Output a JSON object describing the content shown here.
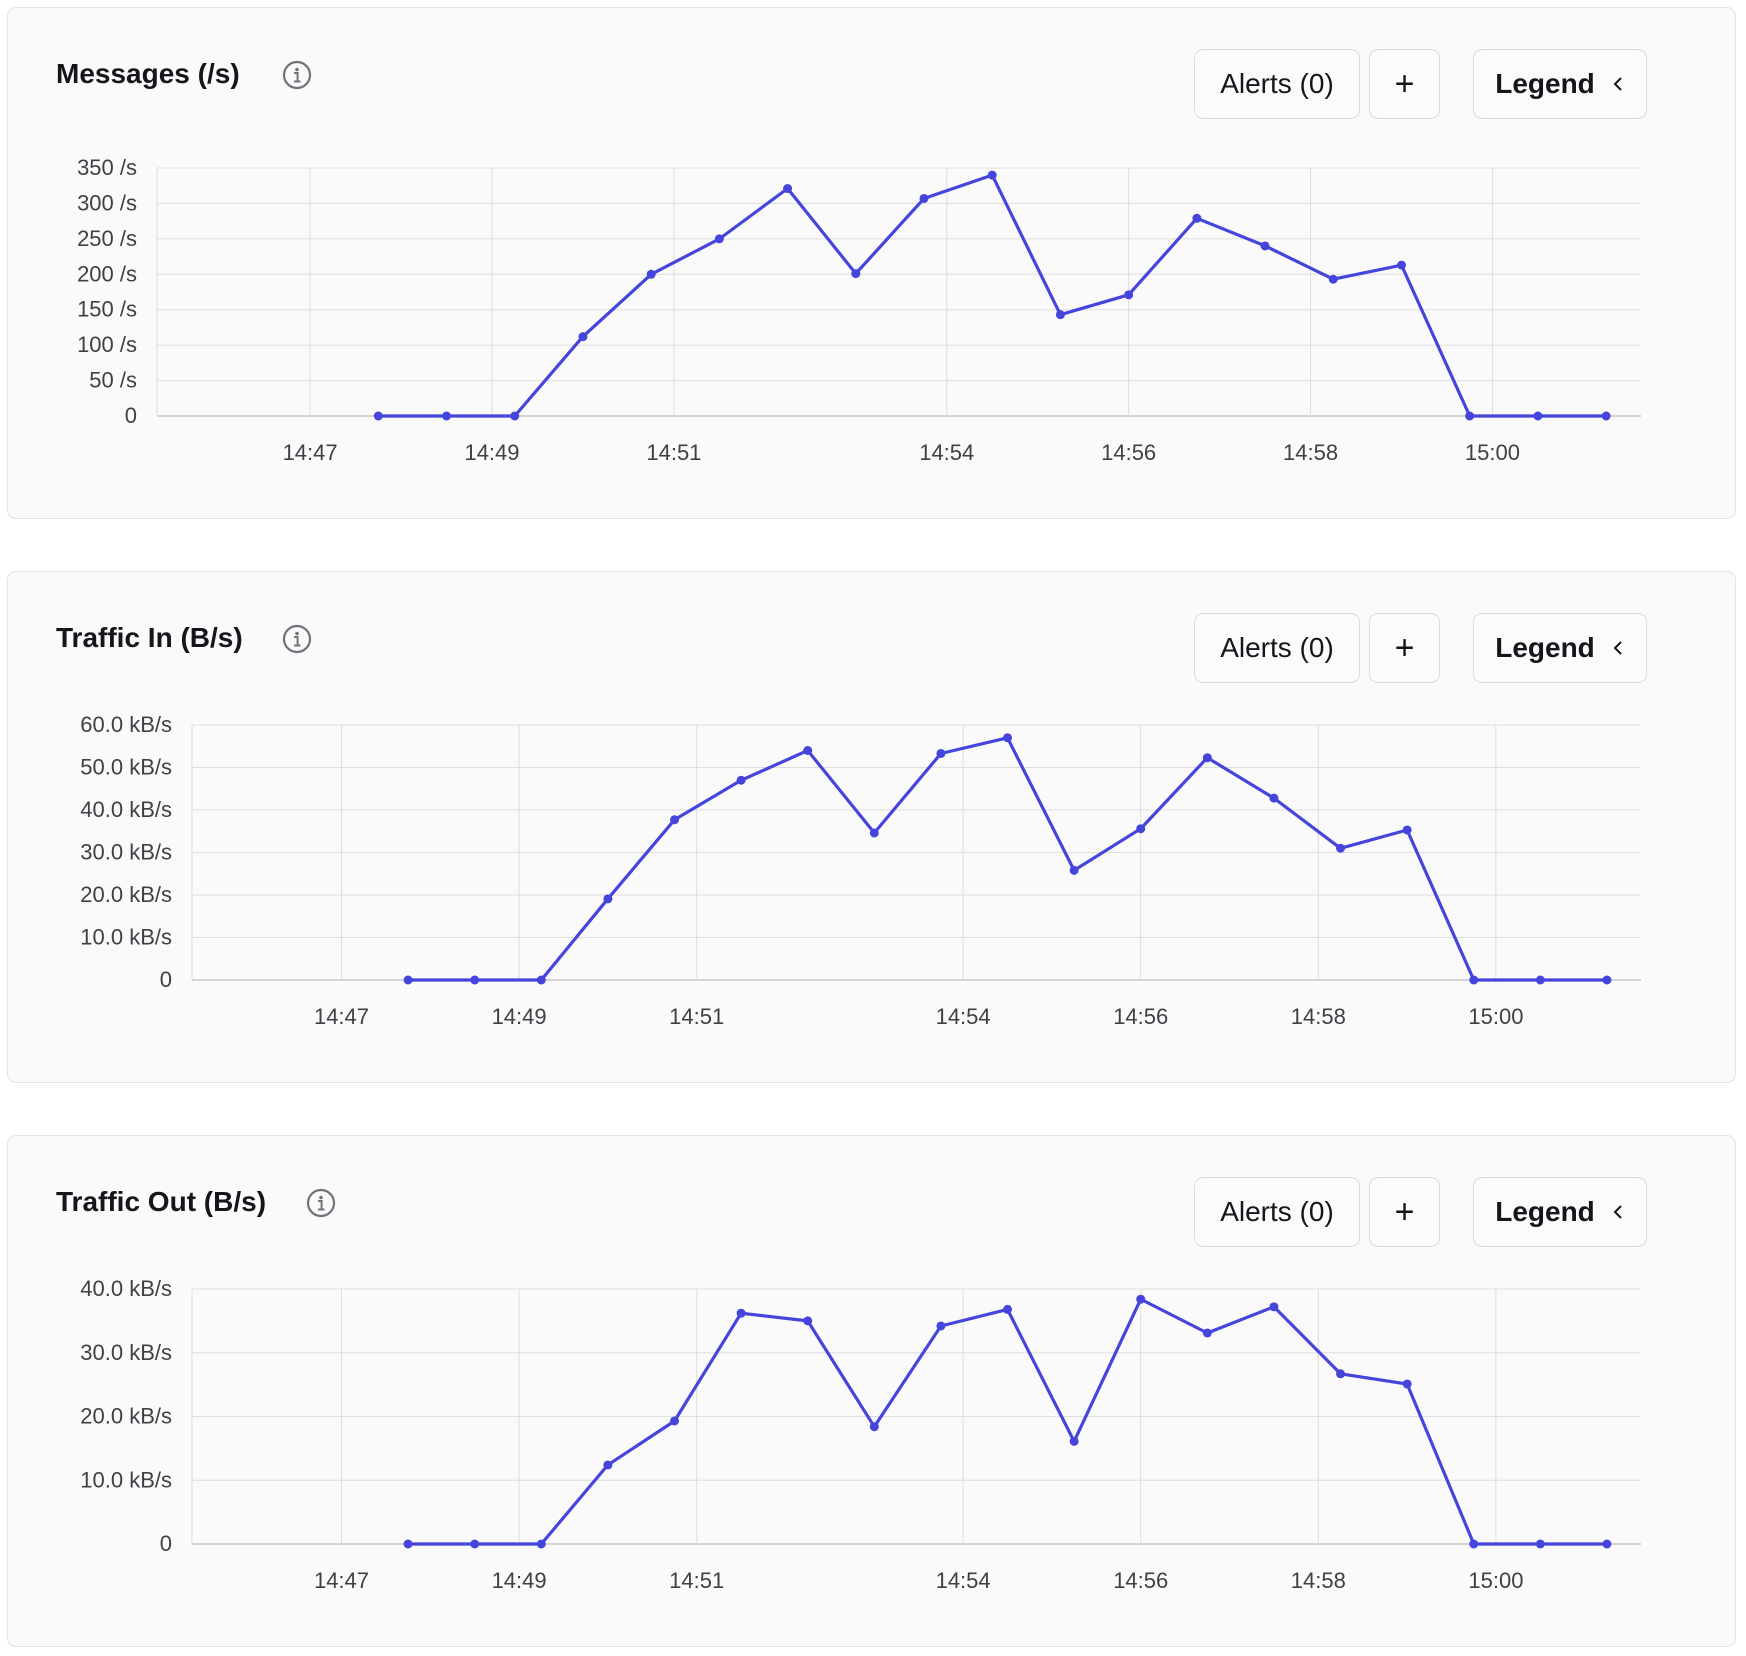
{
  "panels": [
    {
      "title": "Messages (/s)",
      "alerts_label": "Alerts (0)",
      "add_label": "+",
      "legend_label": "Legend",
      "icons": {
        "info": "info-icon",
        "add": "plus-icon",
        "legend_toggle": "chevron-left-icon"
      }
    },
    {
      "title": "Traffic In (B/s)",
      "alerts_label": "Alerts (0)",
      "add_label": "+",
      "legend_label": "Legend",
      "icons": {
        "info": "info-icon",
        "add": "plus-icon",
        "legend_toggle": "chevron-left-icon"
      }
    },
    {
      "title": "Traffic Out (B/s)",
      "alerts_label": "Alerts (0)",
      "add_label": "+",
      "legend_label": "Legend",
      "icons": {
        "info": "info-icon",
        "add": "plus-icon",
        "legend_toggle": "chevron-left-icon"
      }
    }
  ],
  "colors": {
    "line": "#4545dc",
    "grid": "#dedede",
    "axis": "#c8c8c8"
  },
  "chart_data": [
    {
      "type": "line",
      "title": "Messages (/s)",
      "grid": true,
      "x_ticks": [
        "14:47",
        "14:49",
        "14:51",
        "14:54",
        "14:56",
        "14:58",
        "15:00"
      ],
      "y_ticks": [
        "0",
        "50 /s",
        "100 /s",
        "150 /s",
        "200 /s",
        "250 /s",
        "300 /s",
        "350 /s"
      ],
      "ylim": [
        0,
        350
      ],
      "series": [
        {
          "x": [
            "14:47:45",
            "14:48:30",
            "14:49:15",
            "14:50:00",
            "14:50:45",
            "14:51:30",
            "14:52:15",
            "14:53:00",
            "14:53:45",
            "14:54:30",
            "14:55:15",
            "14:56:00",
            "14:56:45",
            "14:57:30",
            "14:58:15",
            "14:59:00",
            "14:59:45",
            "15:00:30",
            "15:01:15"
          ],
          "values": [
            0,
            0,
            0,
            112,
            200,
            250,
            321,
            201,
            307,
            340,
            143,
            171,
            279,
            240,
            193,
            213,
            0,
            0,
            0
          ]
        }
      ]
    },
    {
      "type": "line",
      "title": "Traffic In (B/s)",
      "grid": true,
      "x_ticks": [
        "14:47",
        "14:49",
        "14:51",
        "14:54",
        "14:56",
        "14:58",
        "15:00"
      ],
      "y_ticks": [
        "0",
        "10.0 kB/s",
        "20.0 kB/s",
        "30.0 kB/s",
        "40.0 kB/s",
        "50.0 kB/s",
        "60.0 kB/s"
      ],
      "ylim": [
        0,
        60
      ],
      "series": [
        {
          "x": [
            "14:47:45",
            "14:48:30",
            "14:49:15",
            "14:50:00",
            "14:50:45",
            "14:51:30",
            "14:52:15",
            "14:53:00",
            "14:53:45",
            "14:54:30",
            "14:55:15",
            "14:56:00",
            "14:56:45",
            "14:57:30",
            "14:58:15",
            "14:59:00",
            "14:59:45",
            "15:00:30",
            "15:01:15"
          ],
          "values": [
            0,
            0,
            0,
            19.1,
            37.7,
            47.0,
            54.0,
            34.6,
            53.3,
            57.0,
            25.8,
            35.6,
            52.3,
            42.8,
            31.0,
            35.3,
            0,
            0,
            0
          ]
        }
      ]
    },
    {
      "type": "line",
      "title": "Traffic Out (B/s)",
      "grid": true,
      "x_ticks": [
        "14:47",
        "14:49",
        "14:51",
        "14:54",
        "14:56",
        "14:58",
        "15:00"
      ],
      "y_ticks": [
        "0",
        "10.0 kB/s",
        "20.0 kB/s",
        "30.0 kB/s",
        "40.0 kB/s"
      ],
      "ylim": [
        0,
        40
      ],
      "series": [
        {
          "x": [
            "14:47:45",
            "14:48:30",
            "14:49:15",
            "14:50:00",
            "14:50:45",
            "14:51:30",
            "14:52:15",
            "14:53:00",
            "14:53:45",
            "14:54:30",
            "14:55:15",
            "14:56:00",
            "14:56:45",
            "14:57:30",
            "14:58:15",
            "14:59:00",
            "14:59:45",
            "15:00:30",
            "15:01:15"
          ],
          "values": [
            0,
            0,
            0,
            12.4,
            19.3,
            36.2,
            35.0,
            18.4,
            34.2,
            36.8,
            16.1,
            38.4,
            33.1,
            37.2,
            26.7,
            25.1,
            0,
            0,
            0
          ]
        }
      ]
    }
  ]
}
